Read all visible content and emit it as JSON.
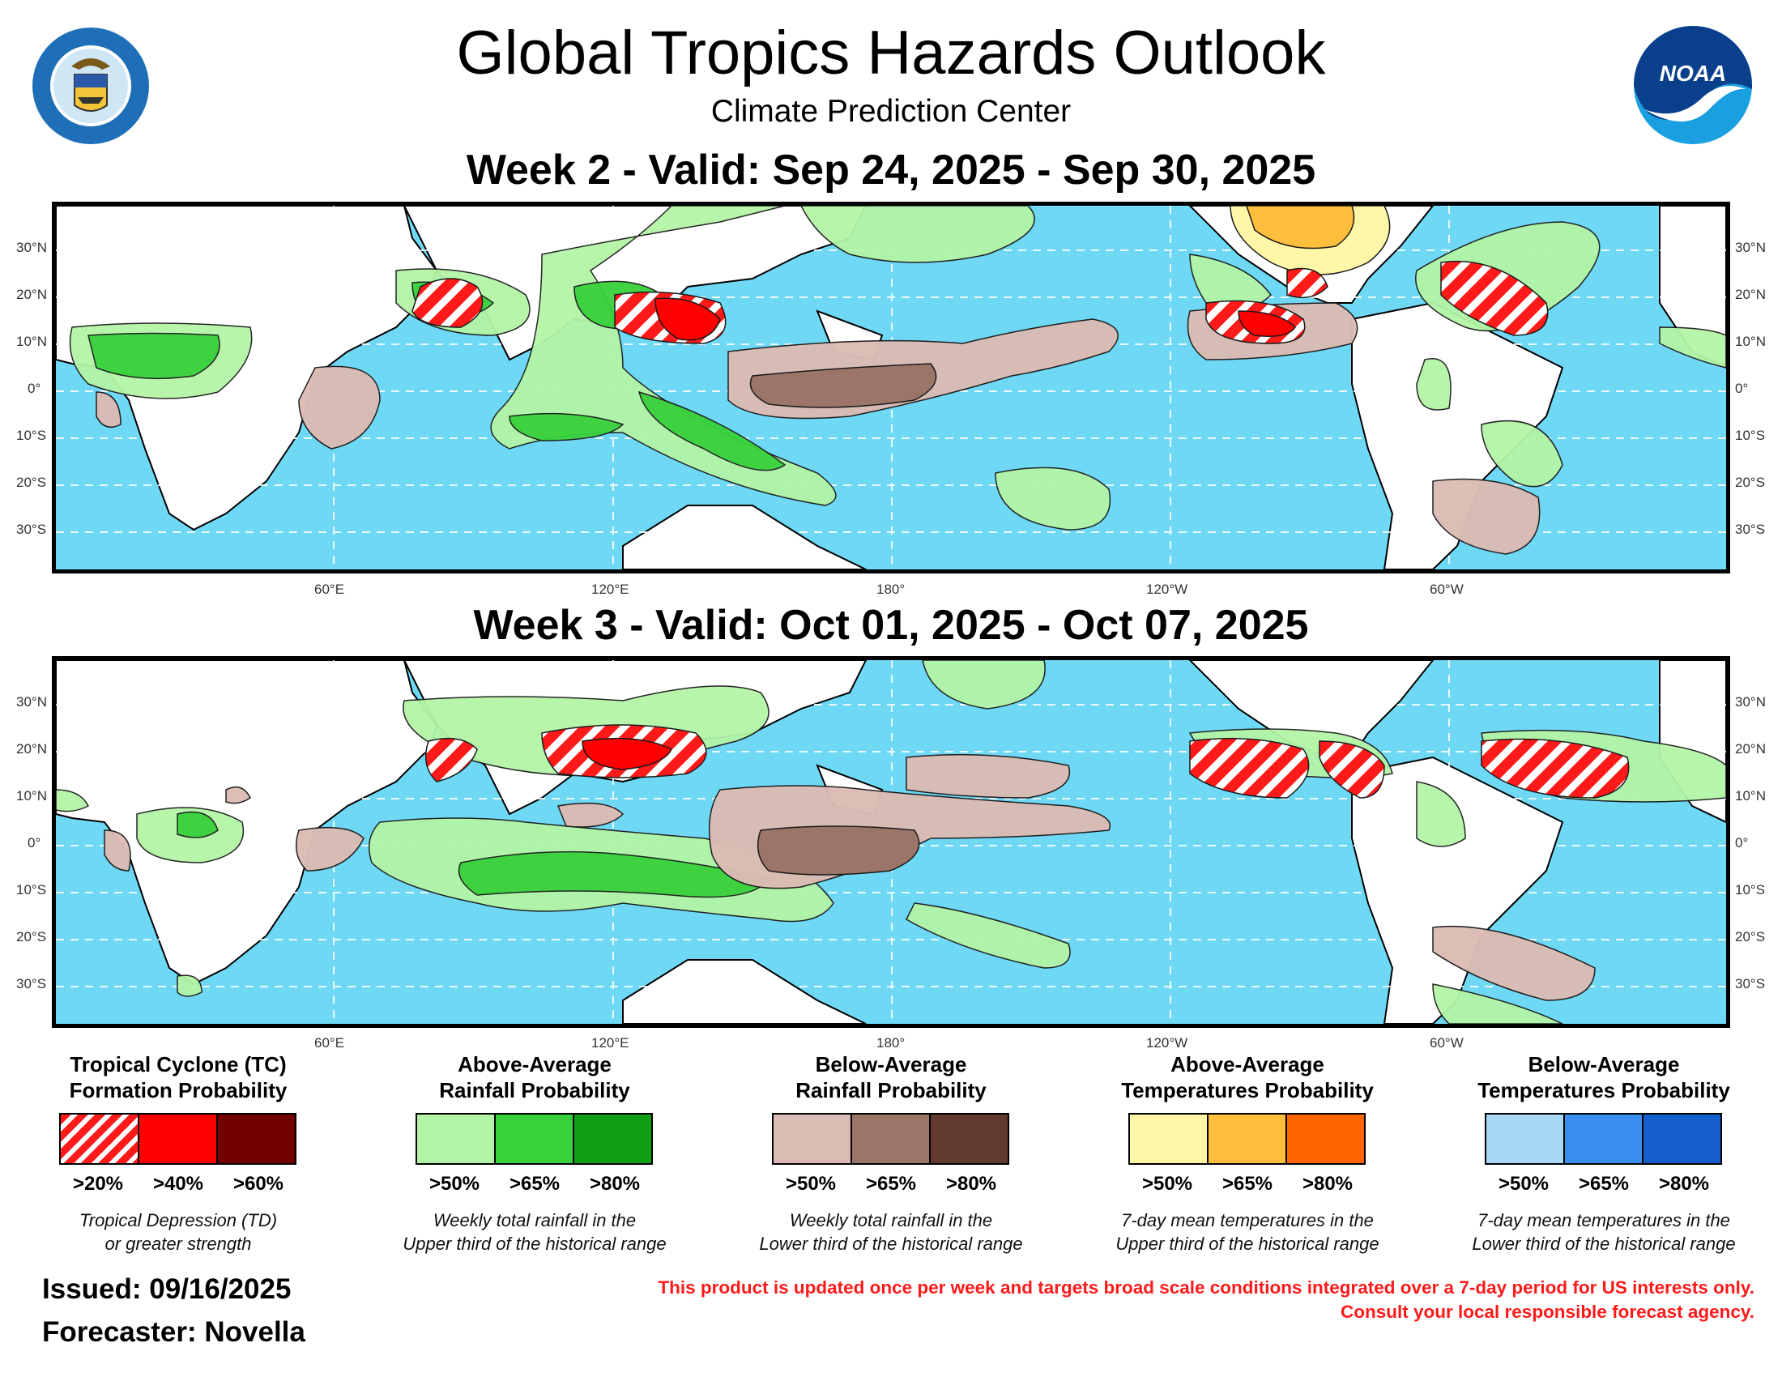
{
  "header": {
    "title": "Global Tropics Hazards Outlook",
    "subtitle": "Climate Prediction Center",
    "left_logo": {
      "icon": "doc-seal-icon",
      "text": "DEPARTMENT OF COMMERCE · UNITED STATES OF AMERICA"
    },
    "right_logo": {
      "icon": "noaa-logo-icon",
      "text": "NOAA"
    }
  },
  "week2": {
    "title": "Week 2 - Valid: Sep 24, 2025 - Sep 30, 2025"
  },
  "week3": {
    "title": "Week 3 - Valid: Oct 01, 2025 - Oct 07, 2025"
  },
  "axes": {
    "lat_labels": [
      "30°N",
      "20°N",
      "10°N",
      "0°",
      "10°S",
      "20°S",
      "30°S"
    ],
    "lon_labels": [
      "60°E",
      "120°E",
      "180°",
      "120°W",
      "60°W"
    ]
  },
  "legend": [
    {
      "title_line1": "Tropical Cyclone (TC)",
      "title_line2": "Formation Probability",
      "boxes": [
        "hatch",
        "#ff0000",
        "#720000"
      ],
      "labels": [
        ">20%",
        ">40%",
        ">60%"
      ],
      "note_line1": "Tropical Depression (TD)",
      "note_line2": "or greater strength"
    },
    {
      "title_line1": "Above-Average",
      "title_line2": "Rainfall Probability",
      "boxes": [
        "#b3f5a6",
        "#38d13c",
        "#0f9e14"
      ],
      "labels": [
        ">50%",
        ">65%",
        ">80%"
      ],
      "note_line1": "Weekly total rainfall in the",
      "note_line2": "Upper third of the historical range"
    },
    {
      "title_line1": "Below-Average",
      "title_line2": "Rainfall Probability",
      "boxes": [
        "#dbbcb4",
        "#9b7568",
        "#633a30"
      ],
      "labels": [
        ">50%",
        ">65%",
        ">80%"
      ],
      "note_line1": "Weekly total rainfall in the",
      "note_line2": "Lower third of the historical range"
    },
    {
      "title_line1": "Above-Average",
      "title_line2": "Temperatures Probability",
      "boxes": [
        "#fff6a8",
        "#ffbe3c",
        "#ff6600"
      ],
      "labels": [
        ">50%",
        ">65%",
        ">80%"
      ],
      "note_line1": "7-day mean temperatures in the",
      "note_line2": "Upper third of the historical range"
    },
    {
      "title_line1": "Below-Average",
      "title_line2": "Temperatures Probability",
      "boxes": [
        "#a6d8f5",
        "#3a8fee",
        "#1560cc"
      ],
      "labels": [
        ">50%",
        ">65%",
        ">80%"
      ],
      "note_line1": "7-day mean temperatures in the",
      "note_line2": "Lower third of the historical range"
    }
  ],
  "footer": {
    "issued": "Issued: 09/16/2025",
    "forecaster": "Forecaster: Novella",
    "disclaimer_line1": "This product is updated once per week and targets broad scale conditions integrated over a 7-day period for US interests only.",
    "disclaimer_line2": "Consult your local responsible forecast agency."
  }
}
